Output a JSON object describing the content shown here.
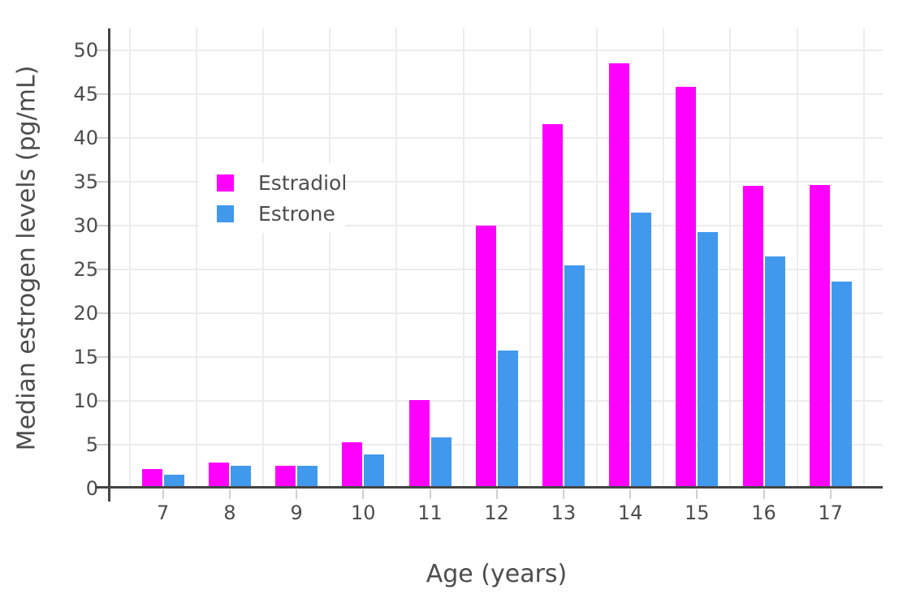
{
  "chart_data": {
    "type": "bar",
    "title": "",
    "xlabel": "Age (years)",
    "ylabel": "Median estrogen levels (pg/mL)",
    "categories": [
      "7",
      "8",
      "9",
      "10",
      "11",
      "12",
      "13",
      "14",
      "15",
      "16",
      "17"
    ],
    "series": [
      {
        "name": "Estradiol",
        "color": "#FF00FF",
        "values": [
          2.2,
          3.0,
          2.6,
          5.3,
          10.1,
          30.0,
          41.6,
          48.5,
          45.8,
          34.5,
          34.6
        ]
      },
      {
        "name": "Estrone",
        "color": "#4199EE",
        "values": [
          1.6,
          2.6,
          2.6,
          3.9,
          5.8,
          15.7,
          25.5,
          31.5,
          29.3,
          26.5,
          23.6
        ]
      }
    ],
    "ylim": [
      0,
      52.5
    ],
    "yticks": [
      0,
      5,
      10,
      15,
      20,
      25,
      30,
      35,
      40,
      45,
      50
    ],
    "grid": true,
    "legend_position": "inside-upper-left",
    "legend_entries": [
      "Estradiol",
      "Estrone"
    ]
  },
  "styles": {
    "estradiol_color": "#FF00FF",
    "estrone_color": "#4199EE",
    "text_color": "#4C4C4C",
    "axis_color": "#444444",
    "gridline_color": "#ECECEC",
    "tick_mark_color": "#CFCFCF",
    "background_color": "#FFFFFF"
  }
}
